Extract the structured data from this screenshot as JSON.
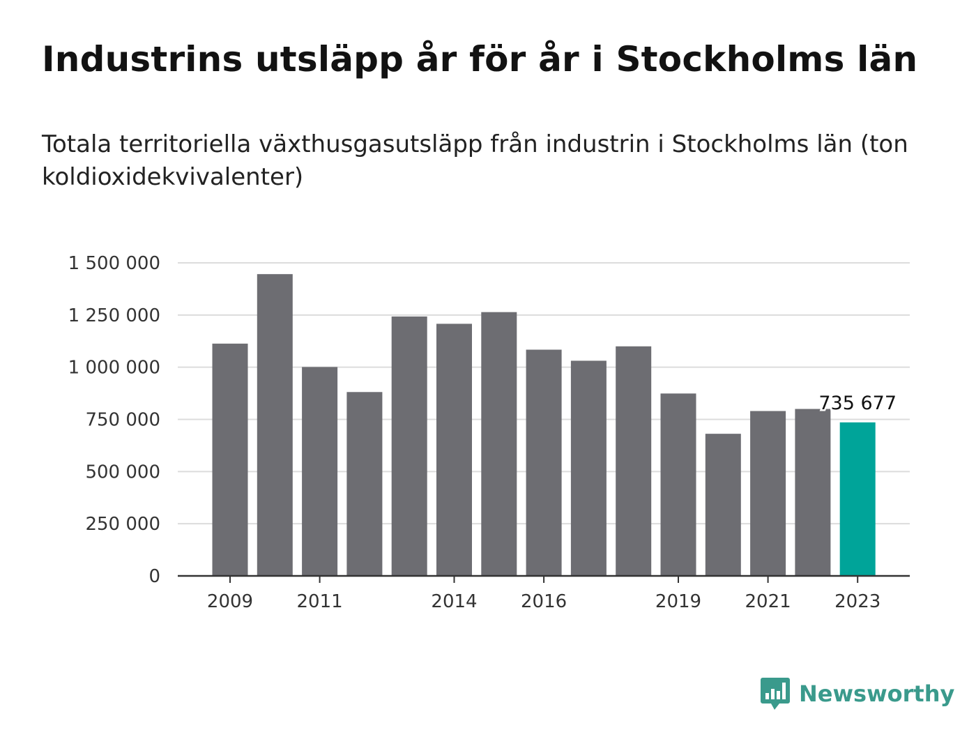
{
  "title": "Industrins utsläpp år för år i Stockholms län",
  "subtitle": "Totala territoriella växthusgasutsläpp från industrin i Stockholms län (ton koldioxidekvivalenter)",
  "brand": {
    "name": "Newsworthy",
    "icon": "bar-chart-speech-bubble-icon",
    "color": "#3a9a8c"
  },
  "chart_data": {
    "type": "bar",
    "categories": [
      "2009",
      "2010",
      "2011",
      "2012",
      "2013",
      "2014",
      "2015",
      "2016",
      "2017",
      "2018",
      "2019",
      "2020",
      "2021",
      "2022",
      "2023"
    ],
    "values": [
      1113000,
      1446000,
      1001000,
      881000,
      1243000,
      1208000,
      1264000,
      1084000,
      1031000,
      1100000,
      874000,
      681000,
      790000,
      800000,
      735677
    ],
    "x_tick_labels": [
      "2009",
      "2011",
      "2014",
      "2016",
      "2019",
      "2021",
      "2023"
    ],
    "y_ticks": [
      0,
      250000,
      500000,
      750000,
      1000000,
      1250000,
      1500000
    ],
    "y_tick_labels": [
      "0",
      "250 000",
      "500 000",
      "750 000",
      "1 000 000",
      "1 250 000",
      "1 500 000"
    ],
    "ylim": [
      0,
      1500000
    ],
    "grid": true,
    "annotations": [
      {
        "category": "2023",
        "text": "735 677"
      }
    ],
    "colors": {
      "bar": "#6d6d72",
      "highlight": "#00a499",
      "grid": "#dcdcdc",
      "axis": "#333333"
    },
    "highlight_category": "2023"
  }
}
